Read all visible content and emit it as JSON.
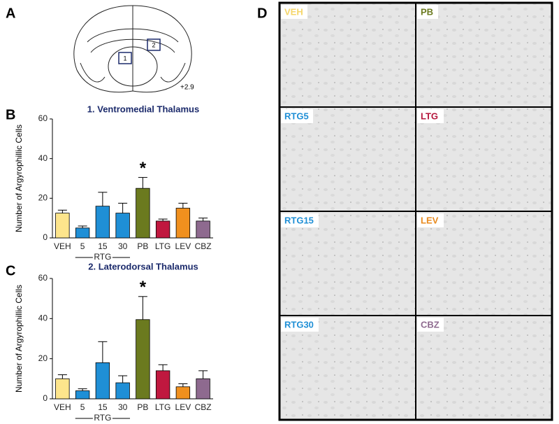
{
  "panel_labels": [
    "A",
    "B",
    "C",
    "D"
  ],
  "atlas": {
    "regions": [
      "1",
      "2"
    ],
    "coordinate": "+2.9"
  },
  "micrographs": [
    {
      "label": "VEH",
      "color": "#f5d66a"
    },
    {
      "label": "PB",
      "color": "#6b7a1f"
    },
    {
      "label": "RTG5",
      "color": "#1f8fd6"
    },
    {
      "label": "LTG",
      "color": "#b5173d"
    },
    {
      "label": "RTG15",
      "color": "#1f8fd6"
    },
    {
      "label": "LEV",
      "color": "#e88a1e"
    },
    {
      "label": "RTG30",
      "color": "#1f8fd6"
    },
    {
      "label": "CBZ",
      "color": "#8e6a8f"
    }
  ],
  "chart_data": [
    {
      "type": "bar",
      "title": "1. Ventromedial Thalamus",
      "y_label": "Number of Argyrophillic Cells",
      "group_label": "RTG",
      "categories": [
        "VEH",
        "5",
        "15",
        "30",
        "PB",
        "LTG",
        "LEV",
        "CBZ"
      ],
      "values": [
        12.5,
        5,
        16,
        12.5,
        25,
        8.5,
        15,
        8.5
      ],
      "errors": [
        1.5,
        1,
        7,
        5,
        5.5,
        1,
        2.5,
        1.5
      ],
      "colors": [
        "#fde58c",
        "#1f8fd6",
        "#1f8fd6",
        "#1f8fd6",
        "#6b7a1f",
        "#c0183f",
        "#f0901e",
        "#8e6a8f"
      ],
      "ylim": [
        0,
        60
      ],
      "yticks": [
        0,
        20,
        40,
        60
      ],
      "annotations": [
        {
          "text": "*",
          "x": "PB"
        }
      ]
    },
    {
      "type": "bar",
      "title": "2. Laterodorsal Thalamus",
      "y_label": "Number of Argyrophillic Cells",
      "group_label": "RTG",
      "categories": [
        "VEH",
        "5",
        "15",
        "30",
        "PB",
        "LTG",
        "LEV",
        "CBZ"
      ],
      "values": [
        10,
        4,
        18,
        8,
        39.5,
        14,
        6,
        10
      ],
      "errors": [
        2,
        1,
        10.5,
        3.5,
        11.5,
        3,
        1.5,
        4
      ],
      "colors": [
        "#fde58c",
        "#1f8fd6",
        "#1f8fd6",
        "#1f8fd6",
        "#6b7a1f",
        "#c0183f",
        "#f0901e",
        "#8e6a8f"
      ],
      "ylim": [
        0,
        60
      ],
      "yticks": [
        0,
        20,
        40,
        60
      ],
      "annotations": [
        {
          "text": "*",
          "x": "PB"
        }
      ]
    }
  ]
}
